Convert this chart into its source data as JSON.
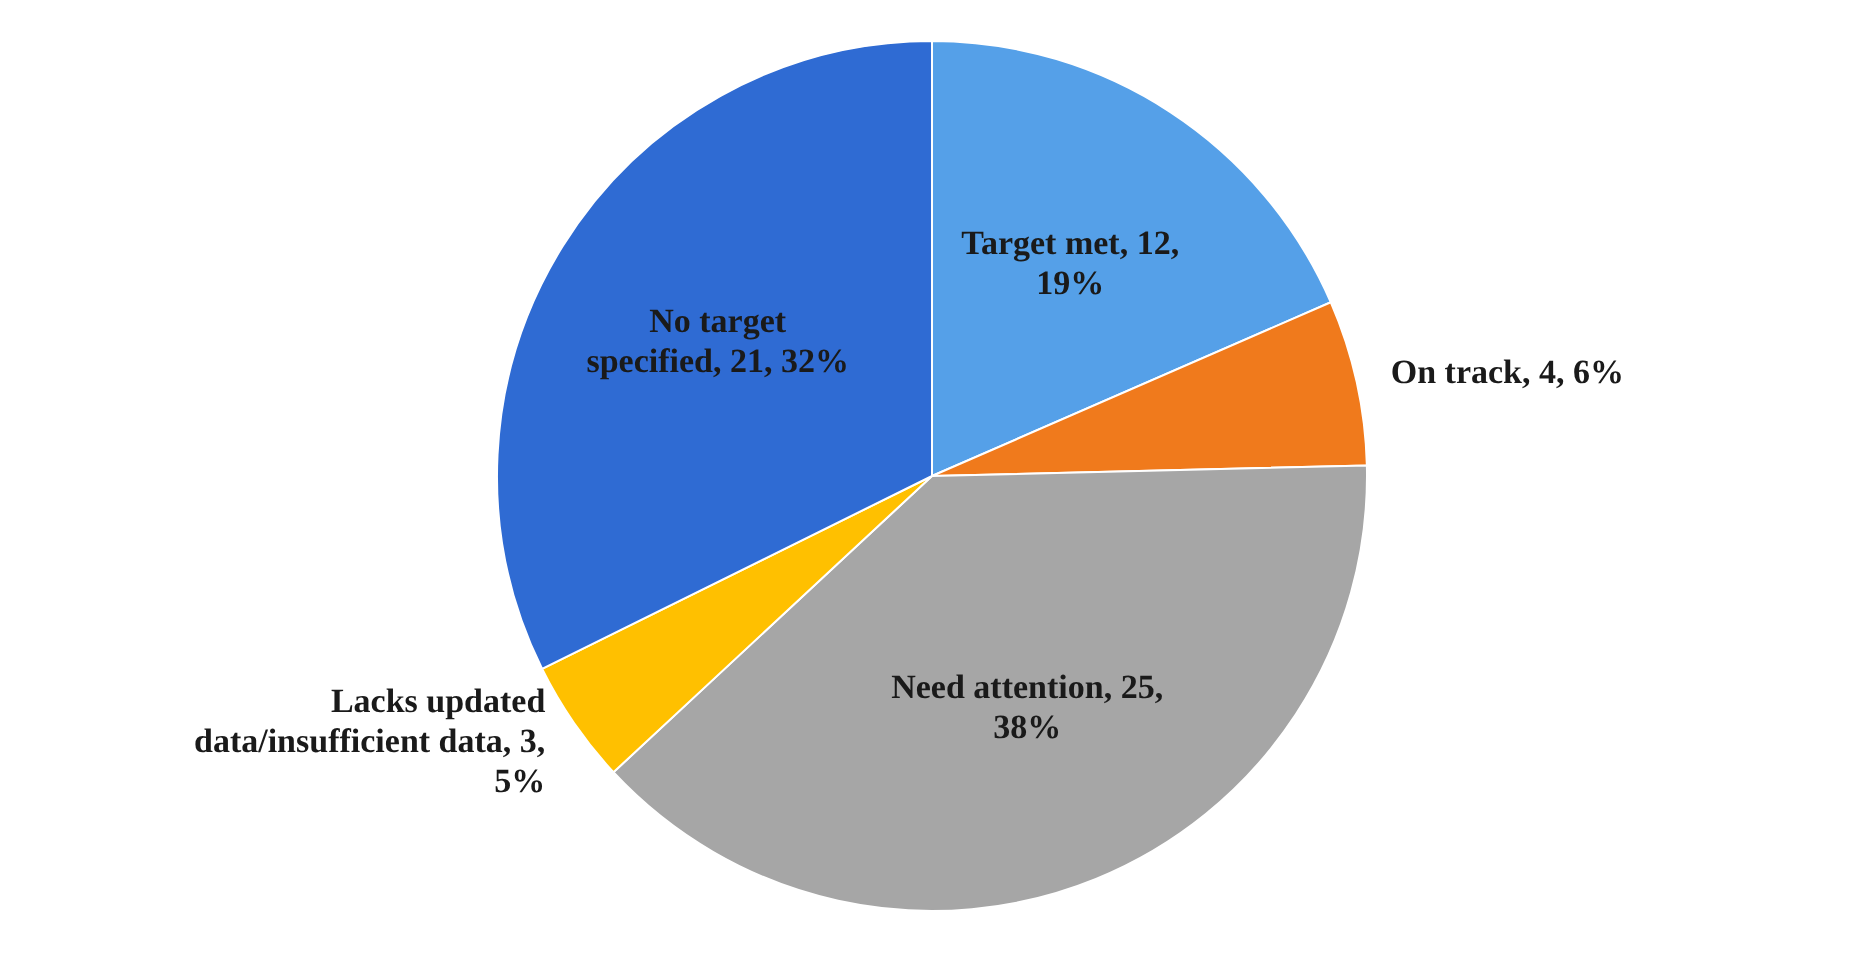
{
  "chart_data": {
    "type": "pie",
    "categories": [
      "Target met",
      "On track",
      "Need attention",
      "Lacks updated data/insufficient data",
      "No target specified"
    ],
    "values": [
      12,
      4,
      25,
      3,
      21
    ],
    "value_labels": [
      "12, 19%",
      "4, 6%",
      "25, 38%",
      "3, 5%",
      "21, 32%"
    ],
    "colors": [
      "#55a0e8",
      "#f07a1c",
      "#a6a6a6",
      "#ffc000",
      "#2f6bd3"
    ],
    "legend": false
  }
}
